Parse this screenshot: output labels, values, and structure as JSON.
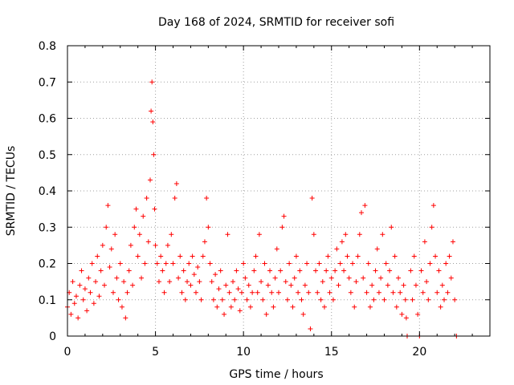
{
  "chart_data": {
    "type": "scatter",
    "title": "Day 168 of 2024, SRMTID for receiver sofi",
    "xlabel": "GPS time / hours",
    "ylabel": "SRMTID / TECUs",
    "xlim": [
      0,
      24
    ],
    "ylim": [
      0,
      0.8
    ],
    "x_ticks": [
      0,
      5,
      10,
      15,
      20
    ],
    "x_tick_labels": [
      "0",
      "5",
      "10",
      "15",
      "20"
    ],
    "y_ticks": [
      0,
      0.1,
      0.2,
      0.3,
      0.4,
      0.5,
      0.6,
      0.7,
      0.8
    ],
    "y_tick_labels": [
      "0",
      "0.1",
      "0.2",
      "0.3",
      "0.4",
      "0.5",
      "0.6",
      "0.7",
      "0.8"
    ],
    "grid": true,
    "marker": "+",
    "color": "#ff0000",
    "series": [
      {
        "name": "SRMTID",
        "points": [
          [
            0.0,
            0.08
          ],
          [
            0.1,
            0.12
          ],
          [
            0.2,
            0.06
          ],
          [
            0.3,
            0.15
          ],
          [
            0.4,
            0.09
          ],
          [
            0.5,
            0.11
          ],
          [
            0.6,
            0.05
          ],
          [
            0.7,
            0.14
          ],
          [
            0.8,
            0.18
          ],
          [
            0.9,
            0.1
          ],
          [
            1.0,
            0.13
          ],
          [
            1.1,
            0.07
          ],
          [
            1.2,
            0.16
          ],
          [
            1.3,
            0.12
          ],
          [
            1.4,
            0.2
          ],
          [
            1.5,
            0.09
          ],
          [
            1.6,
            0.15
          ],
          [
            1.7,
            0.22
          ],
          [
            1.8,
            0.11
          ],
          [
            1.9,
            0.18
          ],
          [
            2.0,
            0.25
          ],
          [
            2.1,
            0.14
          ],
          [
            2.2,
            0.3
          ],
          [
            2.3,
            0.36
          ],
          [
            2.4,
            0.19
          ],
          [
            2.5,
            0.24
          ],
          [
            2.6,
            0.12
          ],
          [
            2.7,
            0.28
          ],
          [
            2.8,
            0.16
          ],
          [
            2.9,
            0.1
          ],
          [
            3.0,
            0.2
          ],
          [
            3.1,
            0.08
          ],
          [
            3.2,
            0.15
          ],
          [
            3.3,
            0.05
          ],
          [
            3.4,
            0.12
          ],
          [
            3.5,
            0.18
          ],
          [
            3.6,
            0.25
          ],
          [
            3.7,
            0.14
          ],
          [
            3.8,
            0.3
          ],
          [
            3.9,
            0.35
          ],
          [
            4.0,
            0.22
          ],
          [
            4.1,
            0.28
          ],
          [
            4.2,
            0.16
          ],
          [
            4.3,
            0.33
          ],
          [
            4.4,
            0.2
          ],
          [
            4.5,
            0.38
          ],
          [
            4.6,
            0.26
          ],
          [
            4.7,
            0.43
          ],
          [
            4.75,
            0.62
          ],
          [
            4.8,
            0.7
          ],
          [
            4.85,
            0.59
          ],
          [
            4.9,
            0.5
          ],
          [
            4.95,
            0.35
          ],
          [
            5.0,
            0.25
          ],
          [
            5.1,
            0.2
          ],
          [
            5.2,
            0.15
          ],
          [
            5.3,
            0.22
          ],
          [
            5.4,
            0.18
          ],
          [
            5.5,
            0.12
          ],
          [
            5.6,
            0.2
          ],
          [
            5.7,
            0.25
          ],
          [
            5.8,
            0.15
          ],
          [
            5.9,
            0.28
          ],
          [
            6.0,
            0.2
          ],
          [
            6.1,
            0.38
          ],
          [
            6.2,
            0.42
          ],
          [
            6.3,
            0.16
          ],
          [
            6.4,
            0.22
          ],
          [
            6.5,
            0.12
          ],
          [
            6.6,
            0.18
          ],
          [
            6.7,
            0.1
          ],
          [
            6.8,
            0.15
          ],
          [
            6.9,
            0.2
          ],
          [
            7.0,
            0.14
          ],
          [
            7.1,
            0.22
          ],
          [
            7.2,
            0.17
          ],
          [
            7.3,
            0.12
          ],
          [
            7.4,
            0.19
          ],
          [
            7.5,
            0.15
          ],
          [
            7.6,
            0.1
          ],
          [
            7.7,
            0.22
          ],
          [
            7.8,
            0.26
          ],
          [
            7.9,
            0.38
          ],
          [
            8.0,
            0.3
          ],
          [
            8.1,
            0.2
          ],
          [
            8.2,
            0.15
          ],
          [
            8.3,
            0.1
          ],
          [
            8.4,
            0.17
          ],
          [
            8.5,
            0.08
          ],
          [
            8.6,
            0.13
          ],
          [
            8.7,
            0.18
          ],
          [
            8.8,
            0.1
          ],
          [
            8.9,
            0.06
          ],
          [
            9.0,
            0.14
          ],
          [
            9.1,
            0.28
          ],
          [
            9.2,
            0.12
          ],
          [
            9.3,
            0.08
          ],
          [
            9.4,
            0.15
          ],
          [
            9.5,
            0.1
          ],
          [
            9.6,
            0.18
          ],
          [
            9.7,
            0.13
          ],
          [
            9.8,
            0.07
          ],
          [
            9.9,
            0.12
          ],
          [
            10.0,
            0.2
          ],
          [
            10.1,
            0.16
          ],
          [
            10.2,
            0.1
          ],
          [
            10.3,
            0.14
          ],
          [
            10.4,
            0.08
          ],
          [
            10.5,
            0.12
          ],
          [
            10.6,
            0.18
          ],
          [
            10.7,
            0.22
          ],
          [
            10.8,
            0.12
          ],
          [
            10.9,
            0.28
          ],
          [
            11.0,
            0.15
          ],
          [
            11.1,
            0.1
          ],
          [
            11.2,
            0.2
          ],
          [
            11.3,
            0.06
          ],
          [
            11.4,
            0.14
          ],
          [
            11.5,
            0.18
          ],
          [
            11.6,
            0.12
          ],
          [
            11.7,
            0.08
          ],
          [
            11.8,
            0.16
          ],
          [
            11.9,
            0.24
          ],
          [
            12.0,
            0.12
          ],
          [
            12.1,
            0.18
          ],
          [
            12.2,
            0.3
          ],
          [
            12.3,
            0.33
          ],
          [
            12.4,
            0.15
          ],
          [
            12.5,
            0.1
          ],
          [
            12.6,
            0.2
          ],
          [
            12.7,
            0.14
          ],
          [
            12.8,
            0.08
          ],
          [
            12.9,
            0.16
          ],
          [
            13.0,
            0.22
          ],
          [
            13.1,
            0.12
          ],
          [
            13.2,
            0.18
          ],
          [
            13.3,
            0.1
          ],
          [
            13.4,
            0.06
          ],
          [
            13.5,
            0.14
          ],
          [
            13.6,
            0.2
          ],
          [
            13.7,
            0.12
          ],
          [
            13.8,
            0.02
          ],
          [
            13.9,
            0.38
          ],
          [
            14.0,
            0.28
          ],
          [
            14.1,
            0.18
          ],
          [
            14.2,
            0.12
          ],
          [
            14.3,
            0.2
          ],
          [
            14.4,
            0.1
          ],
          [
            14.5,
            0.15
          ],
          [
            14.6,
            0.08
          ],
          [
            14.7,
            0.18
          ],
          [
            14.8,
            0.22
          ],
          [
            14.9,
            0.12
          ],
          [
            15.0,
            0.16
          ],
          [
            15.1,
            0.1
          ],
          [
            15.2,
            0.18
          ],
          [
            15.3,
            0.24
          ],
          [
            15.4,
            0.14
          ],
          [
            15.5,
            0.2
          ],
          [
            15.6,
            0.26
          ],
          [
            15.7,
            0.18
          ],
          [
            15.8,
            0.28
          ],
          [
            15.9,
            0.22
          ],
          [
            16.0,
            0.16
          ],
          [
            16.1,
            0.12
          ],
          [
            16.2,
            0.2
          ],
          [
            16.3,
            0.08
          ],
          [
            16.4,
            0.15
          ],
          [
            16.5,
            0.22
          ],
          [
            16.6,
            0.28
          ],
          [
            16.7,
            0.34
          ],
          [
            16.8,
            0.16
          ],
          [
            16.9,
            0.36
          ],
          [
            17.0,
            0.12
          ],
          [
            17.1,
            0.2
          ],
          [
            17.2,
            0.08
          ],
          [
            17.3,
            0.14
          ],
          [
            17.4,
            0.1
          ],
          [
            17.5,
            0.18
          ],
          [
            17.6,
            0.24
          ],
          [
            17.7,
            0.12
          ],
          [
            17.8,
            0.16
          ],
          [
            17.9,
            0.28
          ],
          [
            18.0,
            0.1
          ],
          [
            18.1,
            0.2
          ],
          [
            18.2,
            0.14
          ],
          [
            18.3,
            0.18
          ],
          [
            18.4,
            0.3
          ],
          [
            18.5,
            0.12
          ],
          [
            18.6,
            0.22
          ],
          [
            18.7,
            0.08
          ],
          [
            18.8,
            0.16
          ],
          [
            18.9,
            0.12
          ],
          [
            19.0,
            0.06
          ],
          [
            19.1,
            0.14
          ],
          [
            19.2,
            0.1
          ],
          [
            19.25,
            0.05
          ],
          [
            19.3,
            0.0
          ],
          [
            19.5,
            0.18
          ],
          [
            19.6,
            0.1
          ],
          [
            19.7,
            0.22
          ],
          [
            19.8,
            0.14
          ],
          [
            19.9,
            0.06
          ],
          [
            20.0,
            0.0
          ],
          [
            20.1,
            0.18
          ],
          [
            20.2,
            0.12
          ],
          [
            20.3,
            0.26
          ],
          [
            20.4,
            0.15
          ],
          [
            20.5,
            0.1
          ],
          [
            20.6,
            0.2
          ],
          [
            20.7,
            0.3
          ],
          [
            20.8,
            0.36
          ],
          [
            20.9,
            0.22
          ],
          [
            21.0,
            0.12
          ],
          [
            21.1,
            0.18
          ],
          [
            21.2,
            0.08
          ],
          [
            21.3,
            0.14
          ],
          [
            21.4,
            0.1
          ],
          [
            21.5,
            0.2
          ],
          [
            21.6,
            0.12
          ],
          [
            21.7,
            0.22
          ],
          [
            21.8,
            0.16
          ],
          [
            21.9,
            0.26
          ],
          [
            22.0,
            0.1
          ],
          [
            22.1,
            0.0
          ]
        ]
      }
    ]
  }
}
